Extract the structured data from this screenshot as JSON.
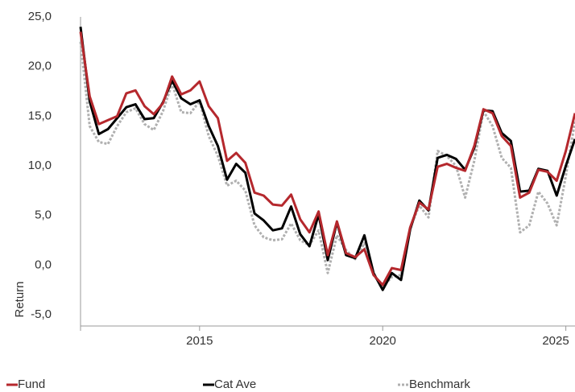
{
  "chart_data": {
    "type": "line",
    "y_label": "Return",
    "legend": "bottom",
    "categories": [
      null,
      null,
      null,
      null,
      null,
      null,
      null,
      null,
      null,
      null,
      null,
      null,
      null,
      "2015",
      null,
      null,
      null,
      null,
      null,
      null,
      null,
      null,
      null,
      null,
      null,
      null,
      null,
      null,
      null,
      null,
      null,
      null,
      null,
      "2020",
      null,
      null,
      null,
      null,
      null,
      null,
      null,
      null,
      null,
      null,
      null,
      null,
      null,
      null,
      null,
      null,
      null,
      null,
      null,
      "2025",
      null
    ],
    "ylim": [
      -5,
      25
    ],
    "yticks": [
      {
        "value": -5,
        "label": "-5,0"
      },
      {
        "value": 0,
        "label": "0,0"
      },
      {
        "value": 5,
        "label": "5,0"
      },
      {
        "value": 10,
        "label": "10,0"
      },
      {
        "value": 15,
        "label": "15,0"
      },
      {
        "value": 20,
        "label": "20,0"
      },
      {
        "value": 25,
        "label": "25,0"
      }
    ],
    "series": [
      {
        "name": "Fund",
        "color": "#b5282d",
        "style": "solid",
        "values": [
          23.5,
          17,
          14.2,
          14.6,
          15,
          17.3,
          17.6,
          16,
          15.2,
          16.3,
          19,
          17.2,
          17.6,
          18.5,
          16,
          14.8,
          10.5,
          11.3,
          10.3,
          7.3,
          7,
          6.1,
          6,
          7.1,
          4.6,
          3.3,
          5.4,
          1,
          4.4,
          1.2,
          0.8,
          1.6,
          -1,
          -2,
          -0.3,
          -0.5,
          3.8,
          6.3,
          5.6,
          9.9,
          10.2,
          9.8,
          9.5,
          12,
          15.7,
          15.3,
          13,
          12,
          6.8,
          7.3,
          9.6,
          9.4,
          8.5,
          11.5,
          15.3
        ]
      },
      {
        "name": "Cat Ave",
        "color": "#000000",
        "style": "solid",
        "values": [
          24,
          16.5,
          13.2,
          13.7,
          14.8,
          15.9,
          16.2,
          14.7,
          14.8,
          16.4,
          18.6,
          16.8,
          16.2,
          16.6,
          14,
          12,
          8.6,
          10.2,
          9.3,
          5.2,
          4.5,
          3.5,
          3.7,
          5.9,
          3.1,
          1.9,
          5.1,
          0.5,
          4.3,
          1,
          0.7,
          3,
          -0.8,
          -2.5,
          -0.8,
          -1.5,
          3.6,
          6.5,
          5.5,
          10.8,
          11.1,
          10.7,
          9.6,
          11.8,
          15.6,
          15.5,
          13.3,
          12.5,
          7.4,
          7.5,
          9.7,
          9.5,
          7,
          10,
          12.7
        ]
      },
      {
        "name": "Benchmark",
        "color": "#b0b0b0",
        "style": "dotted",
        "values": [
          22.5,
          14,
          12.4,
          12.2,
          14,
          15.4,
          15.8,
          14.2,
          13.6,
          15.5,
          18.3,
          15.4,
          15.3,
          16.5,
          13,
          11,
          8,
          8.5,
          7.5,
          4,
          2.8,
          2.5,
          2.6,
          4.2,
          2.5,
          2,
          3.5,
          -0.8,
          3,
          1.5,
          0.6,
          2.2,
          -1,
          -2.2,
          -1.2,
          -1,
          3.8,
          6,
          4.8,
          11.5,
          11,
          10,
          6.8,
          10.5,
          15.5,
          14,
          10.8,
          9.8,
          3.3,
          4,
          7.4,
          6.2,
          4,
          9,
          14.5
        ]
      }
    ]
  }
}
